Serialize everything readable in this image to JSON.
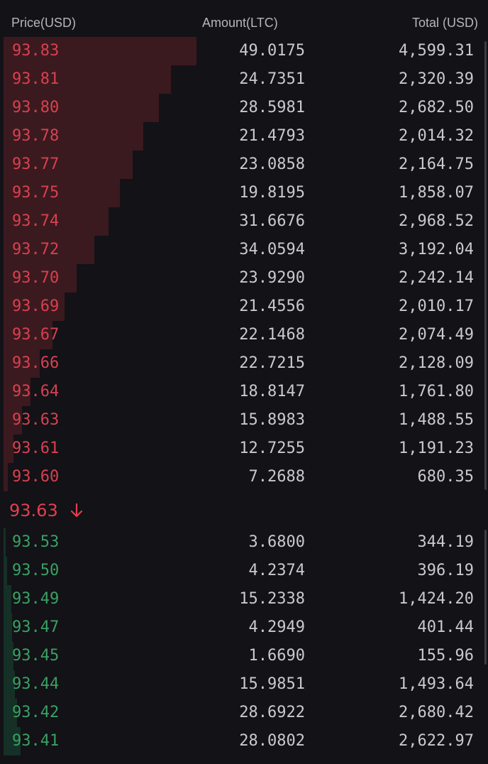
{
  "header": {
    "price_label": "Price(USD)",
    "amount_label": "Amount(LTC)",
    "total_label": "Total (USD)"
  },
  "asks": [
    {
      "price": "93.83",
      "amount": "49.0175",
      "total": "4,599.31",
      "depth": 1.0
    },
    {
      "price": "93.81",
      "amount": "24.7351",
      "total": "2,320.39",
      "depth": 0.866
    },
    {
      "price": "93.80",
      "amount": "28.5981",
      "total": "2,682.50",
      "depth": 0.805
    },
    {
      "price": "93.78",
      "amount": "21.4793",
      "total": "2,014.32",
      "depth": 0.726
    },
    {
      "price": "93.77",
      "amount": "23.0858",
      "total": "2,164.75",
      "depth": 0.668
    },
    {
      "price": "93.75",
      "amount": "19.8195",
      "total": "1,858.07",
      "depth": 0.603
    },
    {
      "price": "93.74",
      "amount": "31.6676",
      "total": "2,968.52",
      "depth": 0.545
    },
    {
      "price": "93.72",
      "amount": "34.0594",
      "total": "3,192.04",
      "depth": 0.469
    },
    {
      "price": "93.70",
      "amount": "23.9290",
      "total": "2,242.14",
      "depth": 0.379
    },
    {
      "price": "93.69",
      "amount": "21.4556",
      "total": "2,010.17",
      "depth": 0.318
    },
    {
      "price": "93.67",
      "amount": "22.1468",
      "total": "2,074.49",
      "depth": 0.253
    },
    {
      "price": "93.66",
      "amount": "22.7215",
      "total": "2,128.09",
      "depth": 0.188
    },
    {
      "price": "93.64",
      "amount": "18.8147",
      "total": "1,761.80",
      "depth": 0.141
    },
    {
      "price": "93.63",
      "amount": "15.8983",
      "total": "1,488.55",
      "depth": 0.094
    },
    {
      "price": "93.61",
      "amount": "12.7255",
      "total": "1,191.23",
      "depth": 0.051
    },
    {
      "price": "93.60",
      "amount": "7.2688",
      "total": "680.35",
      "depth": 0.022
    }
  ],
  "mid": {
    "price": "93.63",
    "direction": "down-arrow-icon",
    "color": "#e0404f"
  },
  "bids": [
    {
      "price": "93.53",
      "amount": "3.6800",
      "total": "344.19",
      "depth": 0.01
    },
    {
      "price": "93.50",
      "amount": "4.2374",
      "total": "396.19",
      "depth": 0.02
    },
    {
      "price": "93.49",
      "amount": "15.2338",
      "total": "1,424.20",
      "depth": 0.04
    },
    {
      "price": "93.47",
      "amount": "4.2949",
      "total": "401.44",
      "depth": 0.045
    },
    {
      "price": "93.45",
      "amount": "1.6690",
      "total": "155.96",
      "depth": 0.05
    },
    {
      "price": "93.44",
      "amount": "15.9851",
      "total": "1,493.64",
      "depth": 0.06
    },
    {
      "price": "93.42",
      "amount": "28.6922",
      "total": "2,680.42",
      "depth": 0.07
    },
    {
      "price": "93.41",
      "amount": "28.0802",
      "total": "2,622.97",
      "depth": 0.09
    }
  ],
  "colors": {
    "ask_text": "#d9404f",
    "bid_text": "#3aa063",
    "ask_depth": "#3a1a1f",
    "bid_depth": "#153026",
    "background": "#121217"
  }
}
